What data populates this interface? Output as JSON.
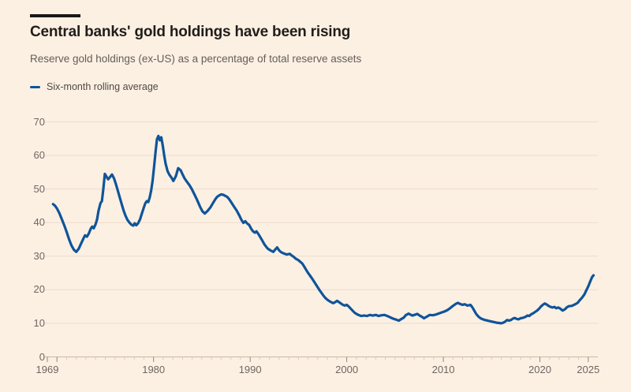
{
  "header": {
    "title": "Central banks' gold holdings have been rising",
    "subtitle": "Reserve gold holdings (ex-US) as a percentage of total reserve assets"
  },
  "legend": {
    "label": "Six-month rolling average"
  },
  "colors": {
    "background": "#fcf0e3",
    "rule": "#1a1817",
    "title_text": "#211d1a",
    "subtitle_text": "#655d57",
    "legend_text": "#4f4843",
    "axis_text": "#6f6660",
    "gridline": "#ecdccc",
    "baseline": "#c9b8a7",
    "tick_minor": "#dcc9b8",
    "tick_major": "#94887d",
    "line": "#0f5499"
  },
  "chart_data": {
    "type": "line",
    "title": "Central banks' gold holdings have been rising",
    "subtitle": "Reserve gold holdings (ex-US) as a percentage of total reserve assets",
    "xlabel": "",
    "ylabel": "",
    "xlim": [
      1969,
      2026
    ],
    "ylim": [
      0,
      70
    ],
    "yticks": [
      0,
      10,
      20,
      30,
      40,
      50,
      60,
      70
    ],
    "xticks": [
      1969,
      1980,
      1990,
      2000,
      2010,
      2020,
      2025
    ],
    "grid": "horizontal",
    "legend_position": "top-left",
    "series": [
      {
        "name": "Six-month rolling average",
        "x": [
          1969.6,
          1969.8,
          1970.0,
          1970.25,
          1970.5,
          1970.75,
          1971.0,
          1971.25,
          1971.5,
          1971.75,
          1972.0,
          1972.25,
          1972.5,
          1972.75,
          1972.9,
          1973.1,
          1973.3,
          1973.5,
          1973.65,
          1973.8,
          1974.0,
          1974.15,
          1974.3,
          1974.5,
          1974.65,
          1974.8,
          1974.95,
          1975.1,
          1975.3,
          1975.5,
          1975.7,
          1975.9,
          1976.1,
          1976.3,
          1976.5,
          1976.7,
          1976.9,
          1977.1,
          1977.3,
          1977.5,
          1977.7,
          1977.9,
          1978.05,
          1978.2,
          1978.4,
          1978.6,
          1978.8,
          1979.0,
          1979.15,
          1979.3,
          1979.45,
          1979.6,
          1979.75,
          1979.9,
          1980.05,
          1980.2,
          1980.35,
          1980.5,
          1980.65,
          1980.8,
          1980.95,
          1981.1,
          1981.25,
          1981.45,
          1981.65,
          1981.85,
          1982.05,
          1982.3,
          1982.55,
          1982.8,
          1983.0,
          1983.2,
          1983.45,
          1983.7,
          1983.95,
          1984.2,
          1984.5,
          1984.8,
          1985.05,
          1985.3,
          1985.6,
          1985.9,
          1986.15,
          1986.4,
          1986.6,
          1986.8,
          1987.0,
          1987.2,
          1987.4,
          1987.6,
          1987.8,
          1988.0,
          1988.3,
          1988.6,
          1988.9,
          1989.1,
          1989.3,
          1989.5,
          1989.7,
          1989.9,
          1990.1,
          1990.3,
          1990.5,
          1990.65,
          1990.8,
          1991.0,
          1991.2,
          1991.5,
          1991.8,
          1992.1,
          1992.4,
          1992.6,
          1992.8,
          1993.0,
          1993.2,
          1993.5,
          1993.8,
          1994.1,
          1994.3,
          1994.5,
          1994.7,
          1995.0,
          1995.2,
          1995.4,
          1995.6,
          1995.8,
          1996.0,
          1996.2,
          1996.4,
          1996.6,
          1996.8,
          1997.0,
          1997.2,
          1997.4,
          1997.6,
          1997.8,
          1998.0,
          1998.2,
          1998.4,
          1998.6,
          1998.8,
          1999.0,
          1999.2,
          1999.4,
          1999.6,
          1999.8,
          2000.0,
          2000.2,
          2000.4,
          2000.6,
          2000.8,
          2001.0,
          2001.2,
          2001.5,
          2001.8,
          2002.1,
          2002.4,
          2002.7,
          2003.0,
          2003.3,
          2003.6,
          2003.9,
          2004.2,
          2004.5,
          2004.8,
          2005.1,
          2005.4,
          2005.6,
          2005.9,
          2006.1,
          2006.4,
          2006.6,
          2006.8,
          2007.0,
          2007.3,
          2007.5,
          2007.8,
          2008.0,
          2008.3,
          2008.6,
          2008.9,
          2009.2,
          2009.5,
          2009.8,
          2010.1,
          2010.4,
          2010.7,
          2011.0,
          2011.3,
          2011.5,
          2011.8,
          2012.0,
          2012.2,
          2012.5,
          2012.8,
          2013.0,
          2013.2,
          2013.4,
          2013.6,
          2013.8,
          2014.0,
          2014.3,
          2014.6,
          2014.9,
          2015.2,
          2015.5,
          2015.8,
          2016.0,
          2016.2,
          2016.4,
          2016.6,
          2016.8,
          2017.0,
          2017.2,
          2017.4,
          2017.6,
          2017.8,
          2018.0,
          2018.2,
          2018.5,
          2018.7,
          2018.9,
          2019.1,
          2019.3,
          2019.5,
          2019.7,
          2019.9,
          2020.1,
          2020.3,
          2020.5,
          2020.7,
          2020.9,
          2021.1,
          2021.3,
          2021.5,
          2021.7,
          2021.9,
          2022.1,
          2022.35,
          2022.6,
          2022.8,
          2023.0,
          2023.3,
          2023.6,
          2023.9,
          2024.1,
          2024.35,
          2024.6,
          2024.8,
          2025.0,
          2025.2,
          2025.4,
          2025.55
        ],
        "values": [
          45.5,
          45.0,
          44.2,
          42.8,
          41.0,
          39.2,
          37.2,
          35.0,
          33.2,
          31.9,
          31.3,
          32.2,
          33.8,
          35.3,
          36.2,
          35.8,
          36.8,
          38.2,
          38.8,
          38.3,
          39.5,
          41.0,
          43.5,
          45.8,
          46.4,
          50.0,
          54.5,
          53.8,
          52.9,
          53.6,
          54.3,
          53.2,
          51.5,
          49.5,
          47.5,
          45.5,
          43.6,
          42.0,
          40.8,
          40.0,
          39.4,
          39.1,
          39.8,
          39.2,
          39.8,
          41.0,
          42.8,
          44.6,
          45.8,
          46.4,
          46.1,
          47.5,
          49.5,
          52.5,
          56.5,
          61.0,
          64.8,
          65.8,
          64.5,
          65.4,
          63.0,
          60.0,
          57.5,
          55.3,
          54.2,
          53.4,
          52.4,
          53.8,
          56.2,
          55.6,
          54.4,
          53.2,
          52.2,
          51.2,
          50.0,
          48.6,
          46.8,
          44.8,
          43.4,
          42.7,
          43.5,
          44.6,
          45.8,
          47.0,
          47.7,
          48.1,
          48.4,
          48.3,
          48.0,
          47.7,
          47.1,
          46.2,
          44.9,
          43.6,
          42.0,
          40.8,
          39.9,
          40.4,
          39.7,
          39.3,
          38.2,
          37.4,
          37.0,
          37.4,
          36.8,
          35.9,
          34.9,
          33.4,
          32.3,
          31.7,
          31.3,
          32.0,
          32.6,
          31.7,
          31.2,
          30.8,
          30.5,
          30.7,
          30.2,
          29.8,
          29.3,
          28.8,
          28.3,
          27.8,
          26.9,
          25.9,
          25.0,
          24.2,
          23.4,
          22.5,
          21.6,
          20.7,
          19.8,
          19.0,
          18.2,
          17.5,
          17.0,
          16.6,
          16.3,
          16.0,
          16.3,
          16.7,
          16.3,
          15.9,
          15.5,
          15.3,
          15.5,
          15.0,
          14.4,
          13.8,
          13.2,
          12.8,
          12.5,
          12.2,
          12.3,
          12.2,
          12.5,
          12.3,
          12.5,
          12.2,
          12.4,
          12.5,
          12.2,
          11.8,
          11.4,
          11.1,
          10.8,
          11.2,
          11.7,
          12.4,
          12.9,
          12.6,
          12.3,
          12.5,
          12.8,
          12.4,
          11.9,
          11.5,
          12.0,
          12.5,
          12.4,
          12.6,
          12.9,
          13.2,
          13.5,
          13.9,
          14.5,
          15.2,
          15.8,
          16.1,
          15.7,
          15.5,
          15.7,
          15.3,
          15.5,
          14.8,
          13.8,
          12.8,
          12.1,
          11.6,
          11.3,
          11.0,
          10.8,
          10.6,
          10.4,
          10.2,
          10.1,
          10.0,
          10.2,
          10.5,
          11.0,
          10.8,
          11.0,
          11.4,
          11.6,
          11.3,
          11.2,
          11.5,
          11.6,
          11.9,
          12.3,
          12.2,
          12.7,
          13.0,
          13.4,
          13.8,
          14.3,
          15.0,
          15.5,
          15.9,
          15.6,
          15.2,
          14.9,
          14.7,
          14.9,
          14.5,
          14.7,
          14.4,
          13.8,
          14.2,
          14.8,
          15.1,
          15.2,
          15.6,
          16.1,
          16.8,
          17.6,
          18.6,
          19.8,
          21.0,
          22.4,
          23.8,
          24.3
        ]
      }
    ]
  }
}
